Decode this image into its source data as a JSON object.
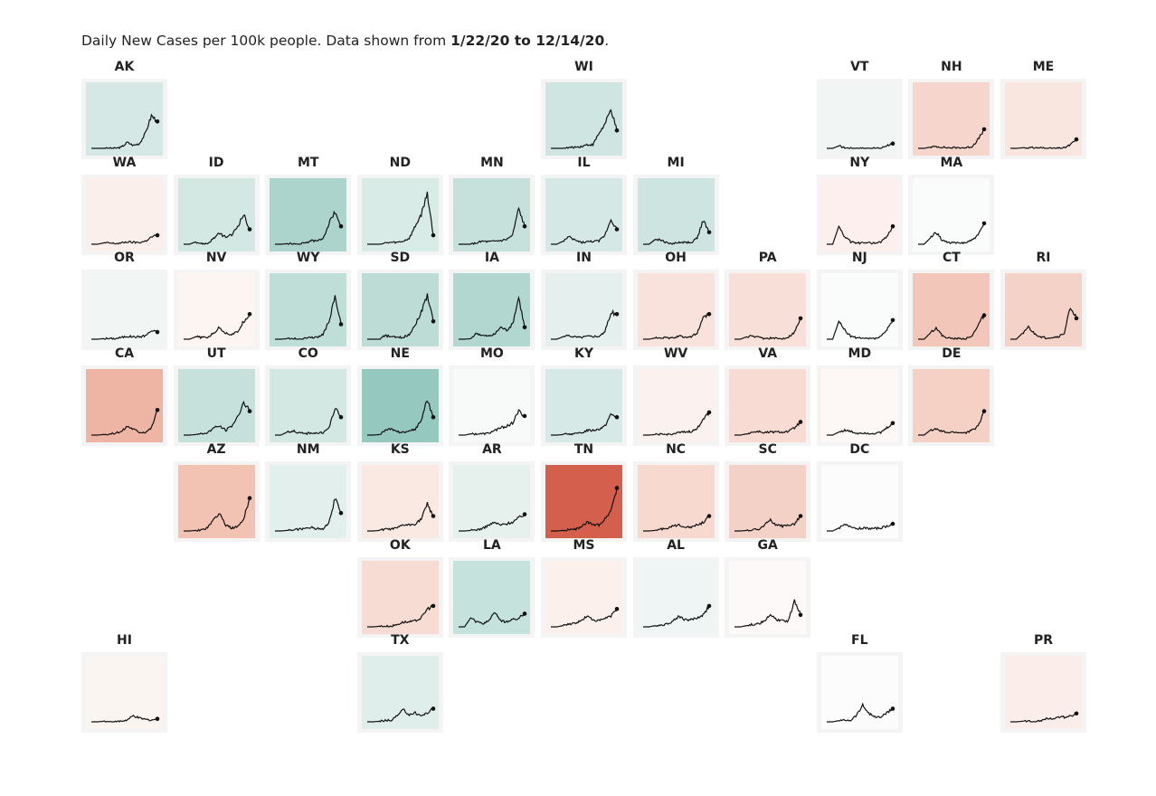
{
  "title": {
    "prefix": "Daily New Cases per 100k people. Data shown from ",
    "range": "1/22/20 to 12/14/20",
    "suffix": "."
  },
  "chart_data": {
    "type": "line",
    "layout": "tile-grid small multiples",
    "x_range": [
      "1/22/20",
      "12/14/20"
    ],
    "grid": false,
    "states": [
      {
        "abbr": "AK",
        "color": "#d5e8e5",
        "values": [
          0,
          0,
          0,
          0,
          0,
          0.02,
          0.1,
          0.05,
          0.08,
          0.25,
          0.55,
          0.45
        ]
      },
      {
        "abbr": "WI",
        "color": "#cfe5e1",
        "values": [
          0,
          0,
          0,
          0.01,
          0.02,
          0.03,
          0.06,
          0.06,
          0.25,
          0.4,
          0.65,
          0.3
        ]
      },
      {
        "abbr": "VT",
        "color": "#f1f6f4",
        "values": [
          0,
          0,
          0.04,
          0.01,
          0,
          0,
          0,
          0,
          0,
          0,
          0.05,
          0.08
        ]
      },
      {
        "abbr": "NH",
        "color": "#f6d6cc",
        "values": [
          0,
          0,
          0.02,
          0.03,
          0.02,
          0.01,
          0.01,
          0.01,
          0.01,
          0.03,
          0.15,
          0.32
        ]
      },
      {
        "abbr": "ME",
        "color": "#f9e6df",
        "values": [
          0,
          0,
          0.01,
          0.01,
          0.01,
          0.01,
          0,
          0,
          0,
          0.01,
          0.06,
          0.15
        ]
      },
      {
        "abbr": "WA",
        "color": "#fbefec",
        "values": [
          0,
          0,
          0.02,
          0.02,
          0.01,
          0.02,
          0.04,
          0.03,
          0.03,
          0.05,
          0.12,
          0.15
        ]
      },
      {
        "abbr": "ID",
        "color": "#d3e7e3",
        "values": [
          0,
          0,
          0.04,
          0.01,
          0.01,
          0.1,
          0.18,
          0.12,
          0.15,
          0.3,
          0.5,
          0.25
        ]
      },
      {
        "abbr": "MT",
        "color": "#acd4cd",
        "values": [
          0,
          0,
          0.01,
          0,
          0,
          0.02,
          0.06,
          0.05,
          0.1,
          0.35,
          0.55,
          0.3
        ]
      },
      {
        "abbr": "ND",
        "color": "#d9ebe7",
        "values": [
          0,
          0,
          0,
          0.02,
          0.03,
          0.03,
          0.05,
          0.1,
          0.3,
          0.5,
          0.85,
          0.15
        ]
      },
      {
        "abbr": "MN",
        "color": "#c6e1db",
        "values": [
          0,
          0,
          0,
          0.02,
          0.05,
          0.04,
          0.05,
          0.06,
          0.08,
          0.15,
          0.6,
          0.3
        ]
      },
      {
        "abbr": "IL",
        "color": "#d5e8e5",
        "values": [
          0,
          0,
          0.05,
          0.12,
          0.07,
          0.03,
          0.04,
          0.05,
          0.05,
          0.15,
          0.42,
          0.25
        ]
      },
      {
        "abbr": "MI",
        "color": "#cde4e0",
        "values": [
          0,
          0,
          0.08,
          0.07,
          0.02,
          0.01,
          0.03,
          0.03,
          0.03,
          0.1,
          0.4,
          0.2
        ]
      },
      {
        "abbr": "NY",
        "color": "#fcefed",
        "values": [
          0,
          0,
          0.3,
          0.12,
          0.04,
          0.02,
          0.02,
          0.02,
          0.02,
          0.04,
          0.12,
          0.3
        ]
      },
      {
        "abbr": "MA",
        "color": "#fafcfb",
        "values": [
          0,
          0,
          0.1,
          0.2,
          0.07,
          0.03,
          0.02,
          0.02,
          0.03,
          0.07,
          0.15,
          0.35
        ]
      },
      {
        "abbr": "OR",
        "color": "#f1f6f4",
        "values": [
          0,
          0,
          0.01,
          0.01,
          0.01,
          0.03,
          0.05,
          0.04,
          0.04,
          0.06,
          0.14,
          0.12
        ]
      },
      {
        "abbr": "NV",
        "color": "#fdf5f2",
        "values": [
          0,
          0,
          0.04,
          0.03,
          0.03,
          0.1,
          0.2,
          0.1,
          0.08,
          0.12,
          0.3,
          0.42
        ]
      },
      {
        "abbr": "WY",
        "color": "#c0ded8",
        "values": [
          0,
          0,
          0.01,
          0.01,
          0,
          0.02,
          0.03,
          0.03,
          0.08,
          0.3,
          0.7,
          0.25
        ]
      },
      {
        "abbr": "SD",
        "color": "#bcdcd5",
        "values": [
          0,
          0,
          0,
          0.06,
          0.04,
          0.03,
          0.03,
          0.08,
          0.25,
          0.45,
          0.75,
          0.3
        ]
      },
      {
        "abbr": "IA",
        "color": "#b1d7d0",
        "values": [
          0,
          0,
          0.01,
          0.1,
          0.06,
          0.05,
          0.08,
          0.2,
          0.15,
          0.25,
          0.7,
          0.2
        ]
      },
      {
        "abbr": "IN",
        "color": "#e5f0ee",
        "values": [
          0,
          0,
          0.04,
          0.06,
          0.04,
          0.03,
          0.05,
          0.05,
          0.05,
          0.12,
          0.45,
          0.42
        ]
      },
      {
        "abbr": "OH",
        "color": "#f9e2db",
        "values": [
          0,
          0,
          0.02,
          0.03,
          0.02,
          0.02,
          0.05,
          0.04,
          0.04,
          0.1,
          0.35,
          0.42
        ]
      },
      {
        "abbr": "PA",
        "color": "#f8e0d8",
        "values": [
          0,
          0,
          0.04,
          0.05,
          0.03,
          0.01,
          0.02,
          0.01,
          0.01,
          0.04,
          0.12,
          0.35
        ]
      },
      {
        "abbr": "NJ",
        "color": "#fafcfb",
        "values": [
          0,
          0,
          0.3,
          0.15,
          0.05,
          0.02,
          0.01,
          0.01,
          0.01,
          0.04,
          0.15,
          0.32
        ]
      },
      {
        "abbr": "CT",
        "color": "#f2c6b8",
        "values": [
          0,
          0,
          0.1,
          0.2,
          0.06,
          0.02,
          0.01,
          0.01,
          0.01,
          0.05,
          0.25,
          0.4
        ]
      },
      {
        "abbr": "RI",
        "color": "#f5d2c7",
        "values": [
          0,
          0,
          0.1,
          0.2,
          0.09,
          0.04,
          0.02,
          0.03,
          0.04,
          0.1,
          0.55,
          0.35
        ]
      },
      {
        "abbr": "CA",
        "color": "#efb5a4",
        "values": [
          0,
          0,
          0.01,
          0.02,
          0.03,
          0.06,
          0.15,
          0.1,
          0.05,
          0.05,
          0.12,
          0.42
        ]
      },
      {
        "abbr": "UT",
        "color": "#c6e1db",
        "values": [
          0,
          0,
          0.01,
          0.02,
          0.04,
          0.12,
          0.15,
          0.08,
          0.15,
          0.3,
          0.55,
          0.4
        ]
      },
      {
        "abbr": "CO",
        "color": "#d3e7e3",
        "values": [
          0,
          0,
          0.05,
          0.07,
          0.04,
          0.02,
          0.04,
          0.03,
          0.04,
          0.12,
          0.45,
          0.3
        ]
      },
      {
        "abbr": "NE",
        "color": "#95c8bf",
        "values": [
          0,
          0,
          0.01,
          0.08,
          0.1,
          0.05,
          0.05,
          0.06,
          0.1,
          0.25,
          0.6,
          0.3
        ]
      },
      {
        "abbr": "MO",
        "color": "#f8faf9",
        "values": [
          0,
          0,
          0.02,
          0.02,
          0.02,
          0.03,
          0.08,
          0.12,
          0.15,
          0.2,
          0.4,
          0.32
        ]
      },
      {
        "abbr": "KY",
        "color": "#d7e9e6",
        "values": [
          0,
          0,
          0.01,
          0.02,
          0.02,
          0.03,
          0.08,
          0.08,
          0.1,
          0.15,
          0.35,
          0.3
        ]
      },
      {
        "abbr": "WV",
        "color": "#fbf1ee",
        "values": [
          0,
          0,
          0.01,
          0.01,
          0.01,
          0.02,
          0.04,
          0.05,
          0.06,
          0.1,
          0.28,
          0.38
        ]
      },
      {
        "abbr": "VA",
        "color": "#f8dcd3",
        "values": [
          0,
          0,
          0.02,
          0.05,
          0.06,
          0.04,
          0.05,
          0.05,
          0.05,
          0.06,
          0.12,
          0.22
        ]
      },
      {
        "abbr": "MD",
        "color": "#fdf7f5",
        "values": [
          0,
          0,
          0.05,
          0.08,
          0.06,
          0.03,
          0.04,
          0.03,
          0.03,
          0.04,
          0.12,
          0.2
        ]
      },
      {
        "abbr": "DE",
        "color": "#f5d0c5",
        "values": [
          0,
          0,
          0.08,
          0.1,
          0.06,
          0.04,
          0.05,
          0.04,
          0.04,
          0.08,
          0.15,
          0.4
        ]
      },
      {
        "abbr": "AZ",
        "color": "#f2c2b3",
        "values": [
          0,
          0,
          0.01,
          0.02,
          0.05,
          0.2,
          0.3,
          0.1,
          0.05,
          0.07,
          0.2,
          0.55
        ]
      },
      {
        "abbr": "NM",
        "color": "#e2efec",
        "values": [
          0,
          0,
          0.01,
          0.02,
          0.03,
          0.04,
          0.06,
          0.04,
          0.04,
          0.15,
          0.55,
          0.3
        ]
      },
      {
        "abbr": "KS",
        "color": "#fae8e3",
        "values": [
          0,
          0,
          0.01,
          0.03,
          0.03,
          0.05,
          0.1,
          0.1,
          0.12,
          0.2,
          0.45,
          0.25
        ]
      },
      {
        "abbr": "AR",
        "color": "#e6f1ee",
        "values": [
          0,
          0,
          0.01,
          0.02,
          0.04,
          0.1,
          0.14,
          0.1,
          0.12,
          0.15,
          0.22,
          0.28
        ]
      },
      {
        "abbr": "TN",
        "color": "#d45f4c",
        "values": [
          0,
          0,
          0.01,
          0.02,
          0.03,
          0.06,
          0.15,
          0.1,
          0.1,
          0.2,
          0.35,
          0.72
        ]
      },
      {
        "abbr": "NC",
        "color": "#f7d9d0",
        "values": [
          0,
          0,
          0.01,
          0.03,
          0.05,
          0.08,
          0.1,
          0.07,
          0.07,
          0.1,
          0.14,
          0.25
        ]
      },
      {
        "abbr": "SC",
        "color": "#f4d1c6",
        "values": [
          0,
          0,
          0.01,
          0.02,
          0.03,
          0.1,
          0.18,
          0.1,
          0.08,
          0.1,
          0.12,
          0.25
        ]
      },
      {
        "abbr": "DC",
        "color": "#fbfcfb",
        "values": [
          0,
          0,
          0.05,
          0.1,
          0.08,
          0.04,
          0.05,
          0.04,
          0.04,
          0.05,
          0.08,
          0.12
        ]
      },
      {
        "abbr": "OK",
        "color": "#f7dcd4",
        "values": [
          0,
          0,
          0.01,
          0.01,
          0.01,
          0.04,
          0.08,
          0.08,
          0.1,
          0.15,
          0.3,
          0.35
        ]
      },
      {
        "abbr": "LA",
        "color": "#c6e2dc",
        "values": [
          0,
          0,
          0.15,
          0.08,
          0.05,
          0.1,
          0.25,
          0.1,
          0.08,
          0.12,
          0.15,
          0.22
        ]
      },
      {
        "abbr": "MS",
        "color": "#fbf0ec",
        "values": [
          0,
          0,
          0.02,
          0.05,
          0.06,
          0.1,
          0.18,
          0.12,
          0.1,
          0.14,
          0.18,
          0.3
        ]
      },
      {
        "abbr": "AL",
        "color": "#eff5f4",
        "values": [
          0,
          0,
          0.02,
          0.03,
          0.05,
          0.1,
          0.18,
          0.12,
          0.12,
          0.15,
          0.2,
          0.35
        ]
      },
      {
        "abbr": "GA",
        "color": "#fdf9f9",
        "values": [
          0,
          0,
          0.02,
          0.04,
          0.05,
          0.1,
          0.2,
          0.12,
          0.1,
          0.1,
          0.45,
          0.2
        ]
      },
      {
        "abbr": "HI",
        "color": "#fbf5f2",
        "values": [
          0,
          0,
          0.01,
          0,
          0,
          0.01,
          0.03,
          0.1,
          0.06,
          0.04,
          0.03,
          0.05
        ]
      },
      {
        "abbr": "TX",
        "color": "#e0eeeb",
        "values": [
          0,
          0,
          0.01,
          0.02,
          0.03,
          0.1,
          0.2,
          0.12,
          0.15,
          0.1,
          0.15,
          0.22
        ]
      },
      {
        "abbr": "FL",
        "color": "#fcfcfc",
        "values": [
          0,
          0,
          0.02,
          0.03,
          0.03,
          0.12,
          0.28,
          0.15,
          0.08,
          0.08,
          0.15,
          0.22
        ]
      },
      {
        "abbr": "PR",
        "color": "#fbeeea",
        "values": [
          0,
          0,
          0.01,
          0.01,
          0.01,
          0.02,
          0.05,
          0.06,
          0.07,
          0.08,
          0.1,
          0.14
        ]
      }
    ]
  }
}
